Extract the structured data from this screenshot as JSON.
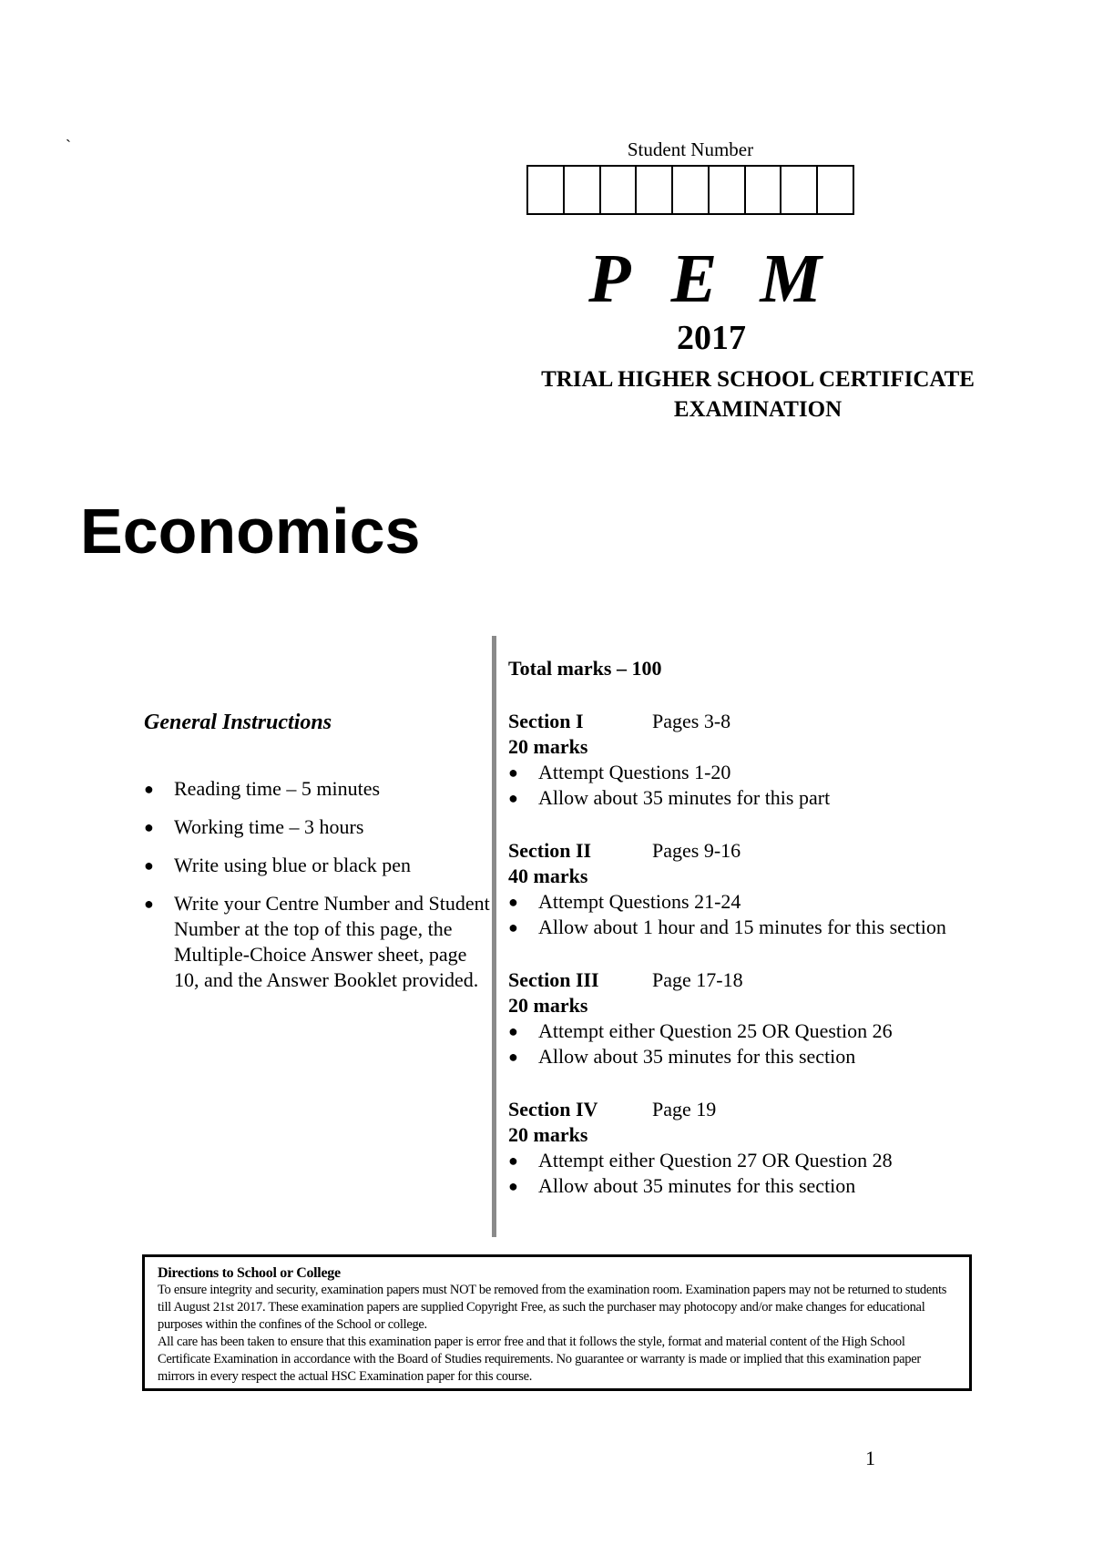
{
  "stray_mark": "`",
  "student_number": {
    "label": "Student Number",
    "box_count": 9
  },
  "header": {
    "logo": "P E M",
    "year": "2017",
    "exam_title_line1": "TRIAL HIGHER SCHOOL CERTIFICATE",
    "exam_title_line2": "EXAMINATION"
  },
  "subject": "Economics",
  "general_instructions": {
    "title": "General Instructions",
    "items": [
      "Reading time – 5 minutes",
      "Working time – 3 hours",
      "Write using blue or black pen",
      "Write your Centre Number and Student Number at the top of this page, the Multiple-Choice Answer sheet, page 10, and the Answer Booklet provided."
    ]
  },
  "total_marks": "Total marks – 100",
  "sections": [
    {
      "name": "Section I",
      "pages": "Pages 3-8",
      "marks": "20 marks",
      "bullets": [
        "Attempt Questions 1-20",
        "Allow about 35 minutes for this part"
      ]
    },
    {
      "name": "Section II",
      "pages": "Pages 9-16",
      "marks": "40 marks",
      "bullets": [
        "Attempt Questions 21-24",
        "Allow about 1 hour and 15 minutes for this section"
      ]
    },
    {
      "name": "Section III",
      "pages": "Page 17-18",
      "marks": "20 marks",
      "bullets": [
        "Attempt either Question 25 OR Question 26",
        "Allow about 35 minutes for this section"
      ]
    },
    {
      "name": "Section IV",
      "pages": "Page 19",
      "marks": "20 marks",
      "bullets": [
        "Attempt either Question 27 OR Question 28",
        "Allow about 35 minutes for this section"
      ]
    }
  ],
  "directions": {
    "title": "Directions to School or College",
    "paragraph1": "To ensure integrity and security, examination papers must NOT be removed from the examination room.  Examination papers may not be returned to students till August 21st 2017. These examination papers are supplied Copyright Free, as such the purchaser may photocopy and/or make changes for educational purposes within the confines of the School or college.",
    "paragraph2": "All care has been taken to ensure that this examination paper is error free and that it follows the style, format and material content of the High School Certificate Examination in accordance with the Board of Studies requirements. No guarantee or warranty is made or implied that this examination paper mirrors in every respect the actual HSC Examination paper for this course."
  },
  "page_number": "1"
}
